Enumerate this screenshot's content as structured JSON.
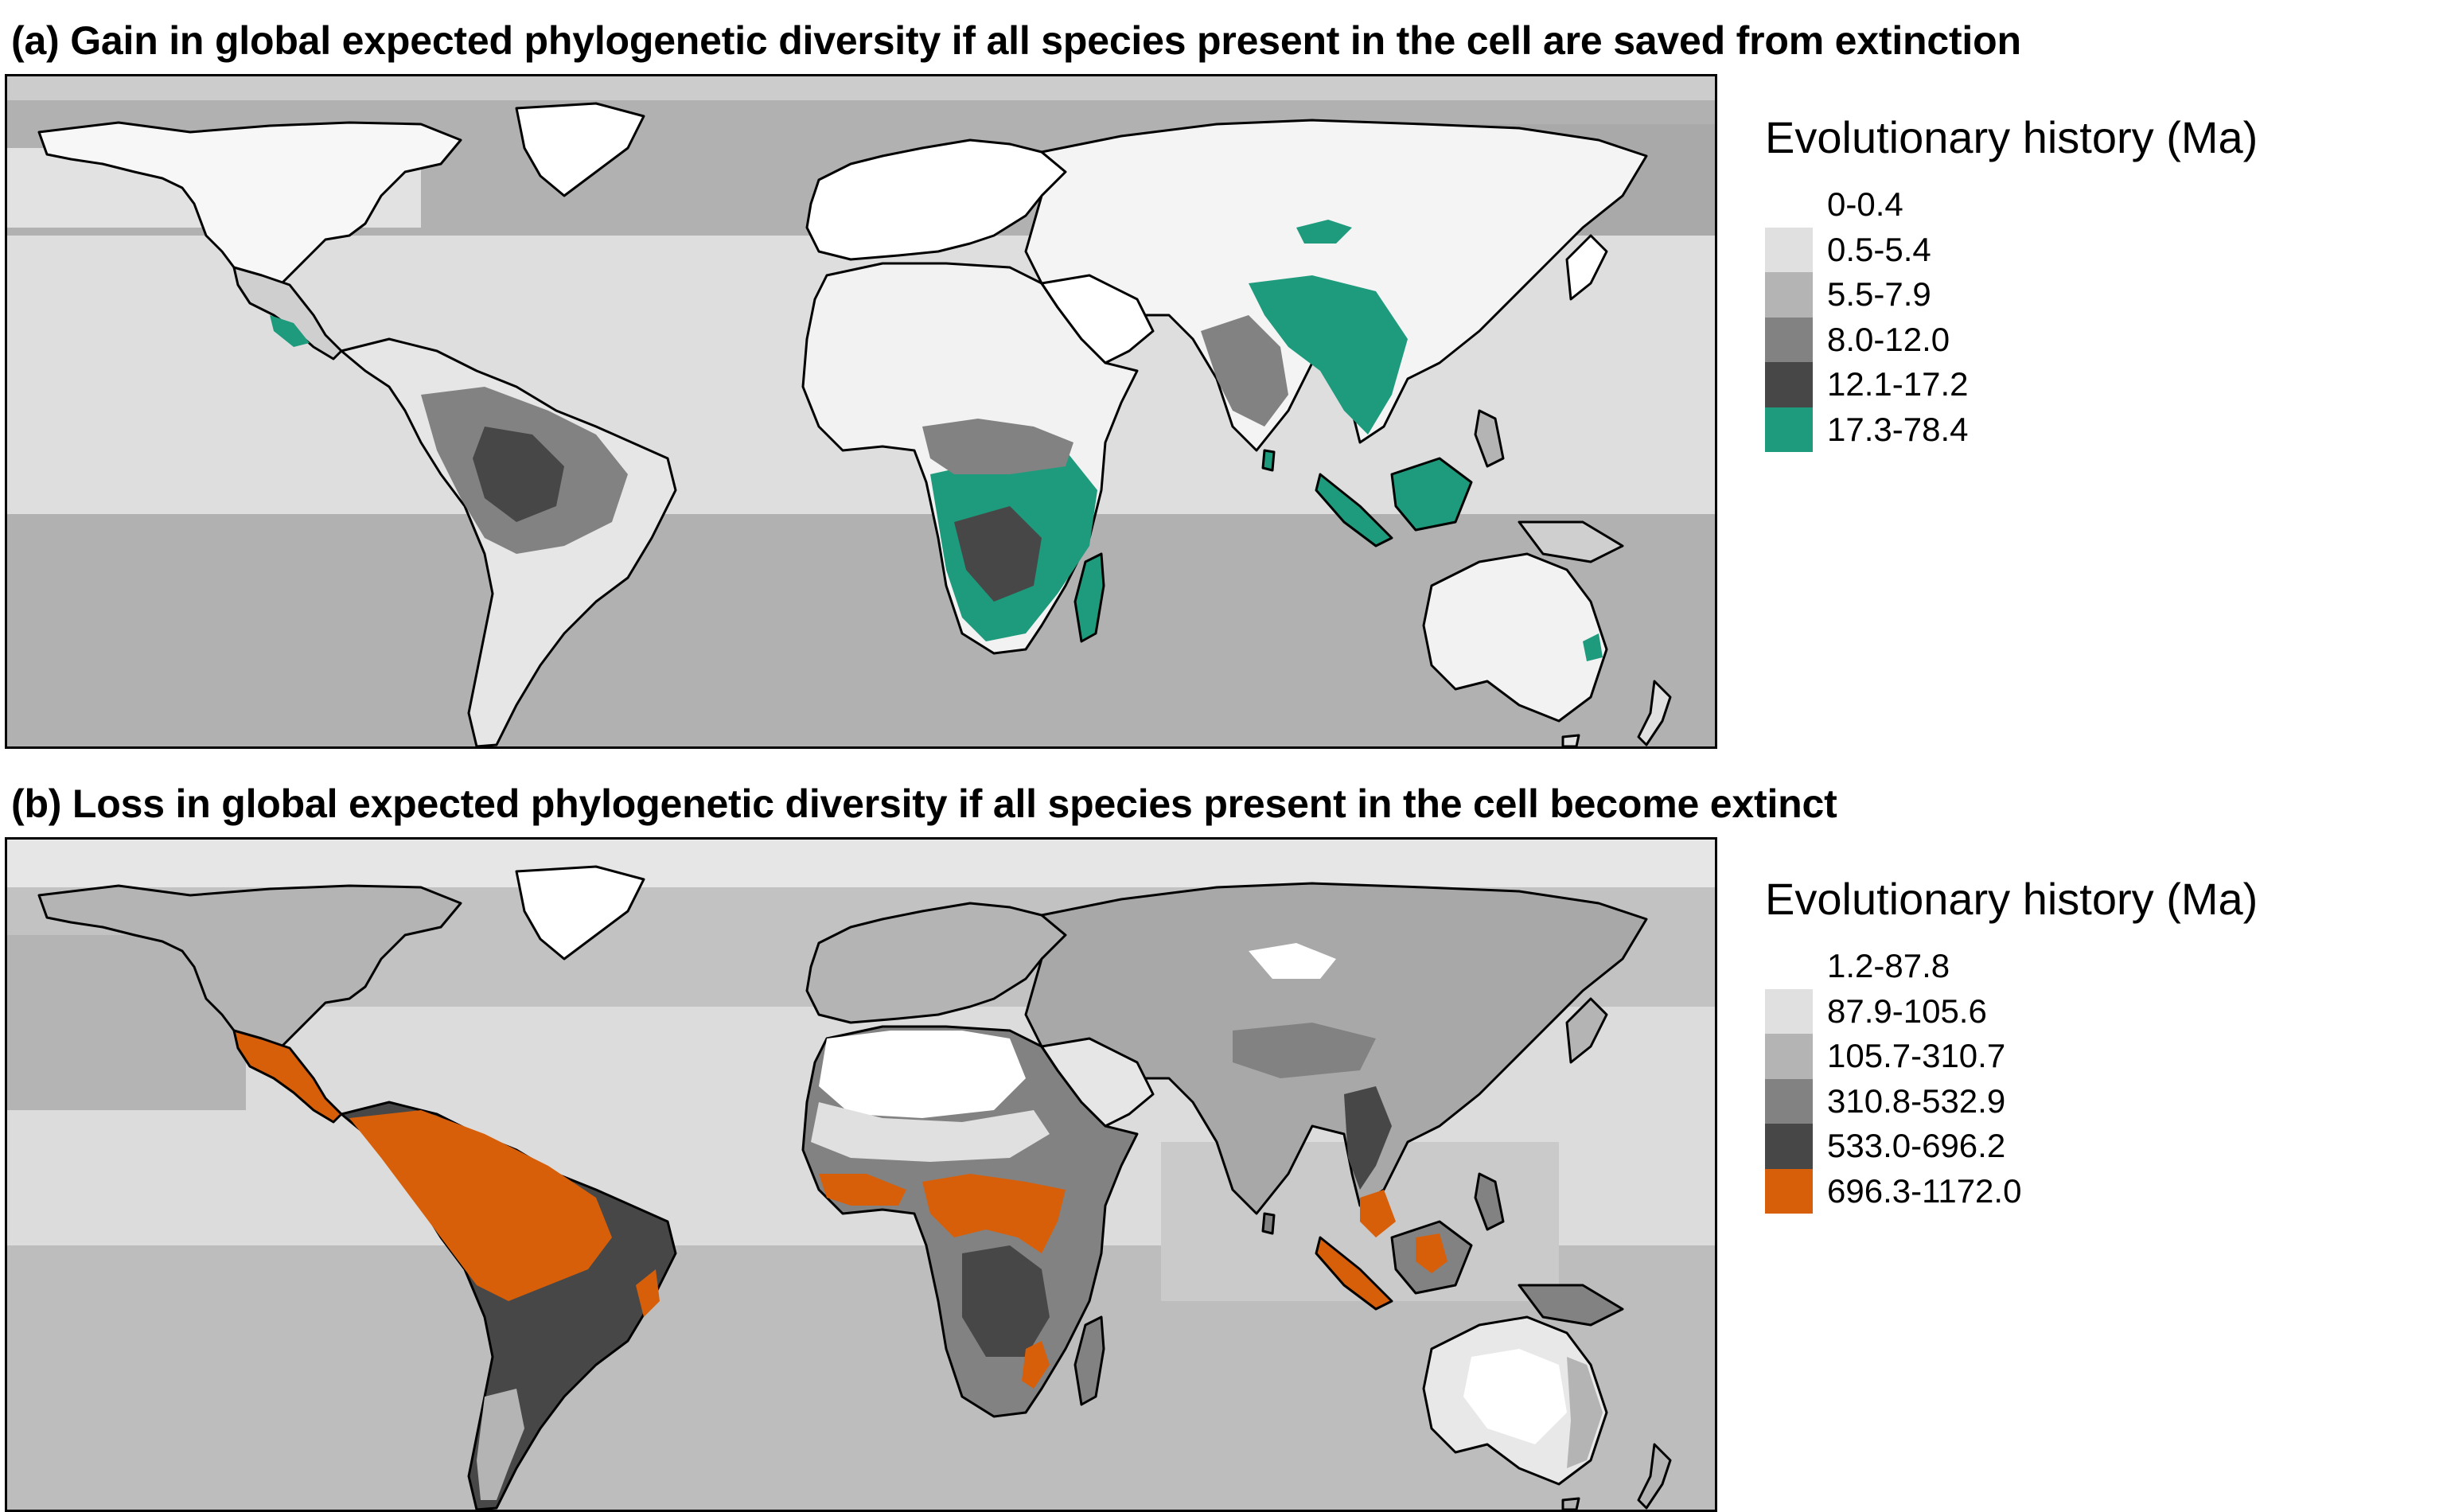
{
  "panel_a": {
    "title": "(a) Gain in global expected phylogenetic diversity if all species present in the cell are saved from extinction",
    "legend_title": "Evolutionary history (Ma)",
    "legend": [
      {
        "label": "0-0.4",
        "color": "#ffffff"
      },
      {
        "label": "0.5-5.4",
        "color": "#e0e0e0"
      },
      {
        "label": "5.5-7.9",
        "color": "#b4b4b4"
      },
      {
        "label": "8.0-12.0",
        "color": "#828282"
      },
      {
        "label": "12.1-17.2",
        "color": "#474747"
      },
      {
        "label": "17.3-78.4",
        "color": "#1e9b7c"
      }
    ]
  },
  "panel_b": {
    "title": "(b) Loss in global expected phylogenetic diversity if all species present in the cell become extinct",
    "legend_title": "Evolutionary history (Ma)",
    "legend": [
      {
        "label": "1.2-87.8",
        "color": "#ffffff"
      },
      {
        "label": "87.9-105.6",
        "color": "#e0e0e0"
      },
      {
        "label": "105.7-310.7",
        "color": "#b4b4b4"
      },
      {
        "label": "310.8-532.9",
        "color": "#828282"
      },
      {
        "label": "533.0-696.2",
        "color": "#474747"
      },
      {
        "label": "696.3-1172.0",
        "color": "#d75f0a"
      }
    ]
  }
}
